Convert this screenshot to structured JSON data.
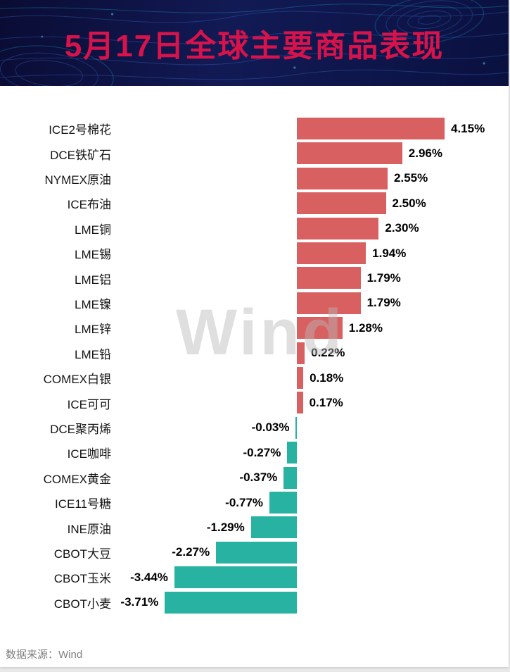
{
  "header": {
    "title": "5月17日全球主要商品表现"
  },
  "watermark": "Wind",
  "footer": {
    "source_label": "数据来源：Wind"
  },
  "colors": {
    "positive_bar": "#d96060",
    "negative_bar": "#27b2a2",
    "header_background": "#0c1040",
    "title_color": "#d8134b",
    "watermark_gray": "#bbbbbb"
  },
  "chart_data": {
    "type": "bar",
    "orientation": "horizontal",
    "title": "5月17日全球主要商品表现",
    "value_unit": "%",
    "grid": false,
    "xlim": [
      -4.2,
      4.6
    ],
    "categories": [
      "ICE2号棉花",
      "DCE铁矿石",
      "NYMEX原油",
      "ICE布油",
      "LME铜",
      "LME锡",
      "LME铝",
      "LME镍",
      "LME锌",
      "LME铅",
      "COMEX白银",
      "ICE可可",
      "DCE聚丙烯",
      "ICE咖啡",
      "COMEX黄金",
      "ICE11号糖",
      "INE原油",
      "CBOT大豆",
      "CBOT玉米",
      "CBOT小麦"
    ],
    "values": [
      4.15,
      2.96,
      2.55,
      2.5,
      2.3,
      1.94,
      1.79,
      1.79,
      1.28,
      0.22,
      0.18,
      0.17,
      -0.03,
      -0.27,
      -0.37,
      -0.77,
      -1.29,
      -2.27,
      -3.44,
      -3.71
    ],
    "value_labels": [
      "4.15%",
      "2.96%",
      "2.55%",
      "2.50%",
      "2.30%",
      "1.94%",
      "1.79%",
      "1.79%",
      "1.28%",
      "0.22%",
      "0.18%",
      "0.17%",
      "-0.03%",
      "-0.27%",
      "-0.37%",
      "-0.77%",
      "-1.29%",
      "-2.27%",
      "-3.44%",
      "-3.71%"
    ],
    "source": "Wind"
  }
}
